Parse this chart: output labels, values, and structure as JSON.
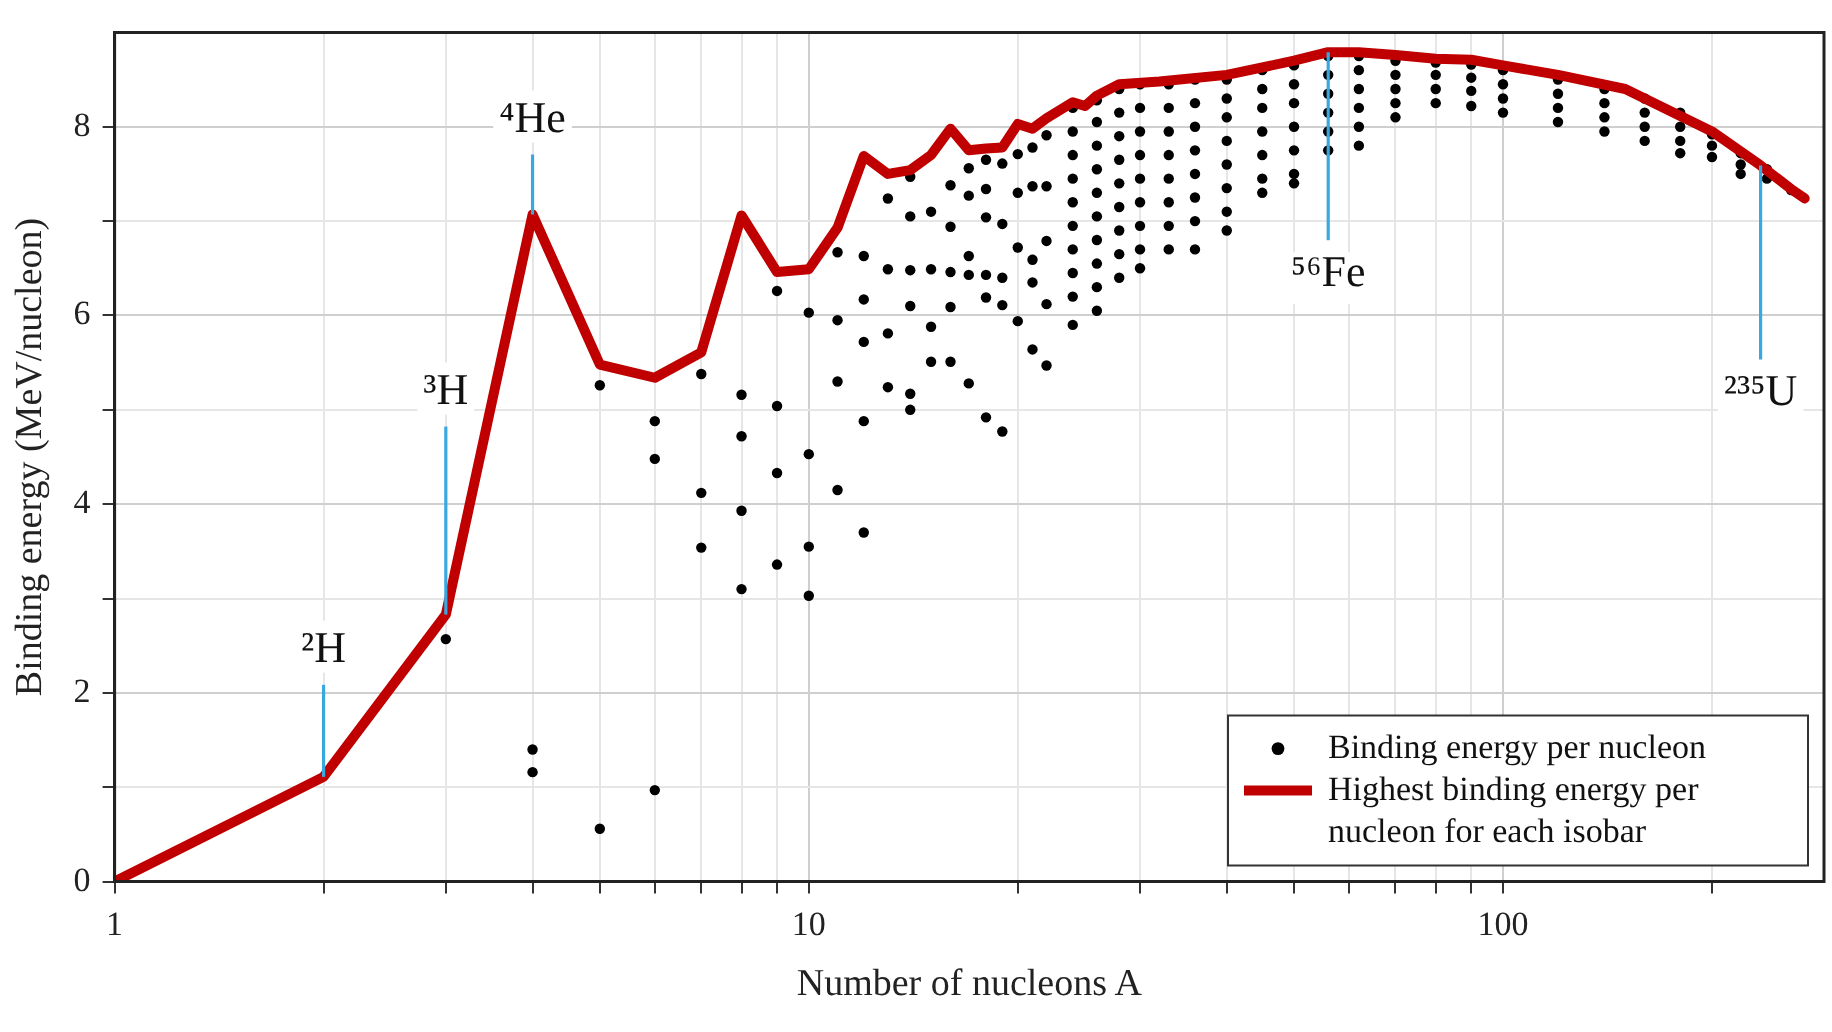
{
  "chart_data": {
    "type": "scatter",
    "xlabel": "Number of nucleons A",
    "ylabel": "Binding energy (MeV/nucleon)",
    "log": "x",
    "xlim": [
      1,
      290
    ],
    "ylim": [
      0,
      9
    ],
    "xticks": [
      1,
      {
        "value": 2,
        "label": null
      },
      {
        "value": 3,
        "label": null
      },
      {
        "value": 4,
        "label": null
      },
      {
        "value": 5,
        "label": null
      },
      {
        "value": 6,
        "label": null
      },
      {
        "value": 7,
        "label": null
      },
      {
        "value": 8,
        "label": null
      },
      {
        "value": 9,
        "label": null
      },
      10,
      {
        "value": 20,
        "label": null
      },
      {
        "value": 30,
        "label": null
      },
      {
        "value": 40,
        "label": null
      },
      {
        "value": 50,
        "label": null
      },
      {
        "value": 60,
        "label": null
      },
      {
        "value": 70,
        "label": null
      },
      {
        "value": 80,
        "label": null
      },
      {
        "value": 90,
        "label": null
      },
      100,
      {
        "value": 200,
        "label": null
      }
    ],
    "yticks": [
      0,
      {
        "value": 1,
        "label": null
      },
      2,
      {
        "value": 3,
        "label": null
      },
      4,
      {
        "value": 5,
        "label": null
      },
      6,
      {
        "value": 7,
        "label": null
      },
      8
    ],
    "grid": true,
    "legend": "bottom right",
    "series": [
      {
        "type": "scatter",
        "name": "Binding energy per nucleon",
        "color": "#000000",
        "marker": "circle",
        "x": [
          3,
          4,
          4,
          5,
          5,
          6,
          6,
          6,
          7,
          7,
          7,
          8,
          8,
          8,
          8,
          9,
          9,
          9,
          9,
          10,
          10,
          10,
          10,
          11,
          11,
          11,
          11,
          12,
          12,
          12,
          12,
          12,
          13,
          13,
          13,
          13,
          14,
          14,
          14,
          14,
          14,
          14,
          15,
          15,
          15,
          15,
          16,
          16,
          16,
          16,
          16,
          17,
          17,
          17,
          17,
          17,
          18,
          18,
          18,
          18,
          18,
          18,
          19,
          19,
          19,
          19,
          19,
          20,
          20,
          20,
          20,
          21,
          21,
          21,
          21,
          21,
          22,
          22,
          22,
          22,
          22,
          24,
          24,
          24,
          24,
          24,
          24,
          24,
          24,
          24,
          24,
          26,
          26,
          26,
          26,
          26,
          26,
          26,
          26,
          26,
          26,
          28,
          28,
          28,
          28,
          28,
          28,
          28,
          28,
          28,
          30,
          30,
          30,
          30,
          30,
          30,
          30,
          30,
          30,
          33,
          33,
          33,
          33,
          33,
          33,
          33,
          33,
          36,
          36,
          36,
          36,
          36,
          36,
          36,
          36,
          40,
          40,
          40,
          40,
          40,
          40,
          40,
          40,
          45,
          45,
          45,
          45,
          45,
          45,
          45,
          50,
          50,
          50,
          50,
          50,
          50,
          50,
          56,
          56,
          56,
          56,
          56,
          56,
          62,
          62,
          62,
          62,
          62,
          62,
          70,
          70,
          70,
          70,
          70,
          80,
          80,
          80,
          80,
          90,
          90,
          90,
          90,
          100,
          100,
          100,
          100,
          120,
          120,
          120,
          120,
          140,
          140,
          140,
          140,
          160,
          160,
          160,
          160,
          180,
          180,
          180,
          180,
          200,
          200,
          200,
          220,
          220,
          220,
          240,
          240,
          260
        ],
        "values": [
          2.57,
          1.4,
          1.16,
          5.26,
          0.56,
          4.88,
          4.48,
          0.97,
          5.38,
          4.12,
          3.54,
          5.16,
          4.72,
          3.93,
          3.1,
          6.26,
          5.04,
          4.33,
          3.36,
          6.03,
          4.53,
          3.55,
          3.03,
          6.67,
          5.95,
          5.3,
          4.15,
          6.63,
          6.17,
          5.72,
          4.88,
          3.7,
          7.24,
          6.49,
          5.81,
          5.24,
          7.47,
          7.05,
          6.48,
          6.1,
          5.17,
          5.0,
          7.1,
          6.49,
          5.88,
          5.51,
          7.38,
          6.94,
          6.46,
          6.09,
          5.51,
          7.56,
          7.27,
          6.63,
          6.43,
          5.28,
          7.65,
          7.34,
          7.04,
          6.43,
          6.19,
          4.92,
          7.61,
          6.97,
          6.4,
          6.11,
          4.77,
          7.71,
          7.3,
          6.72,
          5.94,
          7.78,
          7.37,
          6.59,
          6.35,
          5.64,
          7.91,
          7.37,
          6.79,
          6.12,
          5.47,
          8.2,
          7.95,
          7.7,
          7.45,
          7.2,
          6.95,
          6.7,
          6.45,
          6.2,
          5.9,
          8.28,
          8.05,
          7.8,
          7.55,
          7.3,
          7.05,
          6.8,
          6.55,
          6.3,
          6.05,
          8.4,
          8.15,
          7.9,
          7.65,
          7.4,
          7.15,
          6.9,
          6.65,
          6.4,
          8.45,
          8.2,
          7.95,
          7.7,
          7.45,
          7.2,
          6.95,
          6.7,
          6.5,
          8.45,
          8.2,
          7.95,
          7.7,
          7.45,
          7.2,
          6.95,
          6.7,
          8.5,
          8.25,
          8.0,
          7.75,
          7.5,
          7.25,
          7.0,
          6.7,
          8.5,
          8.3,
          8.1,
          7.85,
          7.6,
          7.35,
          7.1,
          6.9,
          8.6,
          8.4,
          8.2,
          7.95,
          7.7,
          7.45,
          7.3,
          8.65,
          8.45,
          8.25,
          8.0,
          7.75,
          7.5,
          7.4,
          8.75,
          8.55,
          8.35,
          8.15,
          7.95,
          7.75,
          8.75,
          8.6,
          8.4,
          8.2,
          8.0,
          7.8,
          8.7,
          8.55,
          8.4,
          8.25,
          8.1,
          8.68,
          8.55,
          8.4,
          8.25,
          8.66,
          8.52,
          8.38,
          8.22,
          8.6,
          8.45,
          8.3,
          8.15,
          8.5,
          8.35,
          8.2,
          8.05,
          8.4,
          8.25,
          8.1,
          7.95,
          8.3,
          8.15,
          8.0,
          7.85,
          8.15,
          8.0,
          7.85,
          7.72,
          7.92,
          7.8,
          7.68,
          7.72,
          7.6,
          7.5,
          7.55,
          7.45,
          7.33
        ]
      },
      {
        "type": "line",
        "name": "Highest binding energy per nucleon for each isobar",
        "color": "#c00000",
        "marker": "none",
        "x": [
          1,
          2,
          3,
          4,
          5,
          6,
          7,
          8,
          9,
          10,
          11,
          12,
          13,
          14,
          15,
          16,
          17,
          18,
          19,
          20,
          21,
          22,
          24,
          25,
          26,
          28,
          32,
          40,
          50,
          56,
          62,
          70,
          80,
          90,
          100,
          120,
          150,
          200,
          235,
          260,
          272
        ],
        "values": [
          0,
          1.11,
          2.83,
          7.07,
          5.48,
          5.34,
          5.61,
          7.06,
          6.46,
          6.49,
          6.93,
          7.69,
          7.5,
          7.54,
          7.7,
          7.98,
          7.75,
          7.77,
          7.78,
          8.03,
          7.98,
          8.09,
          8.26,
          8.22,
          8.33,
          8.45,
          8.48,
          8.55,
          8.7,
          8.79,
          8.79,
          8.76,
          8.72,
          8.71,
          8.65,
          8.55,
          8.4,
          7.95,
          7.59,
          7.34,
          7.24
        ]
      }
    ],
    "annotations": [
      {
        "text": "²H",
        "x": 2,
        "y": 1.11
      },
      {
        "text": "³H",
        "x": 3,
        "y": 2.83
      },
      {
        "text": "⁴He",
        "x": 4,
        "y": 7.07
      },
      {
        "text": "⁵⁶Fe",
        "x": 56,
        "y": 8.79
      },
      {
        "text": "²³⁵U",
        "x": 235,
        "y": 7.59
      }
    ]
  }
}
